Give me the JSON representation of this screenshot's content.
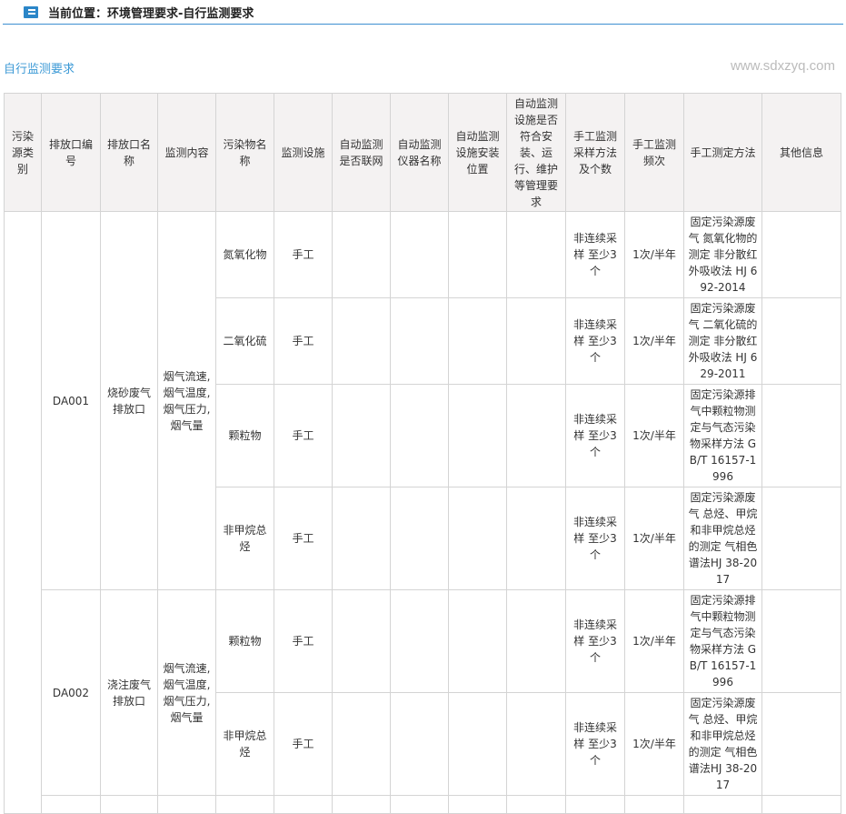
{
  "breadcrumb": {
    "icon": "book-icon",
    "text": "当前位置：环境管理要求-自行监测要求"
  },
  "section_title": "自行监测要求",
  "table": {
    "headers": [
      "污染源类别",
      "排放口编号",
      "排放口名称",
      "监测内容",
      "污染物名称",
      "监测设施",
      "自动监测是否联网",
      "自动监测仪器名称",
      "自动监测设施安装位置",
      "自动监测设施是否符合安装、运行、维护等管理要求",
      "手工监测采样方法及个数",
      "手工监测频次",
      "手工测定方法",
      "其他信息"
    ],
    "outlets": [
      {
        "id": "DA001",
        "name": "烧砂废气排放口",
        "content": "烟气流速,烟气温度,烟气压力,烟气量",
        "rows": [
          {
            "pollutant": "氮氧化物",
            "facility": "手工",
            "sampling": "非连续采样 至少3个",
            "freq": "1次/半年",
            "method": "固定污染源废气 氮氧化物的测定 非分散红外吸收法 HJ 692-2014"
          },
          {
            "pollutant": "二氧化硫",
            "facility": "手工",
            "sampling": "非连续采样 至少3个",
            "freq": "1次/半年",
            "method": "固定污染源废气 二氧化硫的测定 非分散红外吸收法 HJ 629-2011"
          },
          {
            "pollutant": "颗粒物",
            "facility": "手工",
            "sampling": "非连续采样 至少3个",
            "freq": "1次/半年",
            "method": "固定污染源排气中颗粒物测定与气态污染物采样方法 GB/T 16157-1996"
          },
          {
            "pollutant": "非甲烷总烃",
            "facility": "手工",
            "sampling": "非连续采样 至少3个",
            "freq": "1次/半年",
            "method": "固定污染源废气 总烃、甲烷和非甲烷总烃的测定 气相色谱法HJ 38-2017"
          }
        ]
      },
      {
        "id": "DA002",
        "name": "浇注废气排放口",
        "content": "烟气流速,烟气温度,烟气压力,烟气量",
        "rows": [
          {
            "pollutant": "颗粒物",
            "facility": "手工",
            "sampling": "非连续采样 至少3个",
            "freq": "1次/半年",
            "method": "固定污染源排气中颗粒物测定与气态污染物采样方法 GB/T 16157-1996"
          },
          {
            "pollutant": "非甲烷总烃",
            "facility": "手工",
            "sampling": "非连续采样 至少3个",
            "freq": "1次/半年",
            "method": "固定污染源废气 总烃、甲烷和非甲烷总烃的测定 气相色谱法HJ 38-2017"
          }
        ]
      }
    ]
  },
  "watermark": "www.sdxzyq.com"
}
